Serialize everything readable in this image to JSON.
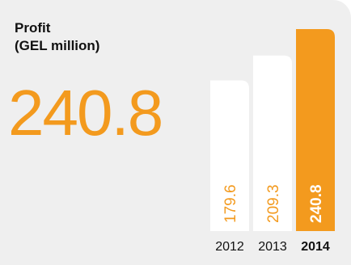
{
  "chart_data": {
    "type": "bar",
    "title": "Profit",
    "subtitle": "(GEL million)",
    "headline_value": "240.8",
    "categories": [
      "2012",
      "2013",
      "2014"
    ],
    "values": [
      179.6,
      209.3,
      240.8
    ],
    "value_labels": [
      "179.6",
      "209.3",
      "240.8"
    ],
    "highlight_index": 2,
    "ylim": [
      0,
      260
    ],
    "grid": false,
    "legend": "none"
  },
  "colors": {
    "highlight": "#f39a1e",
    "bar": "#ffffff",
    "background": "#efefef",
    "text": "#111111"
  }
}
